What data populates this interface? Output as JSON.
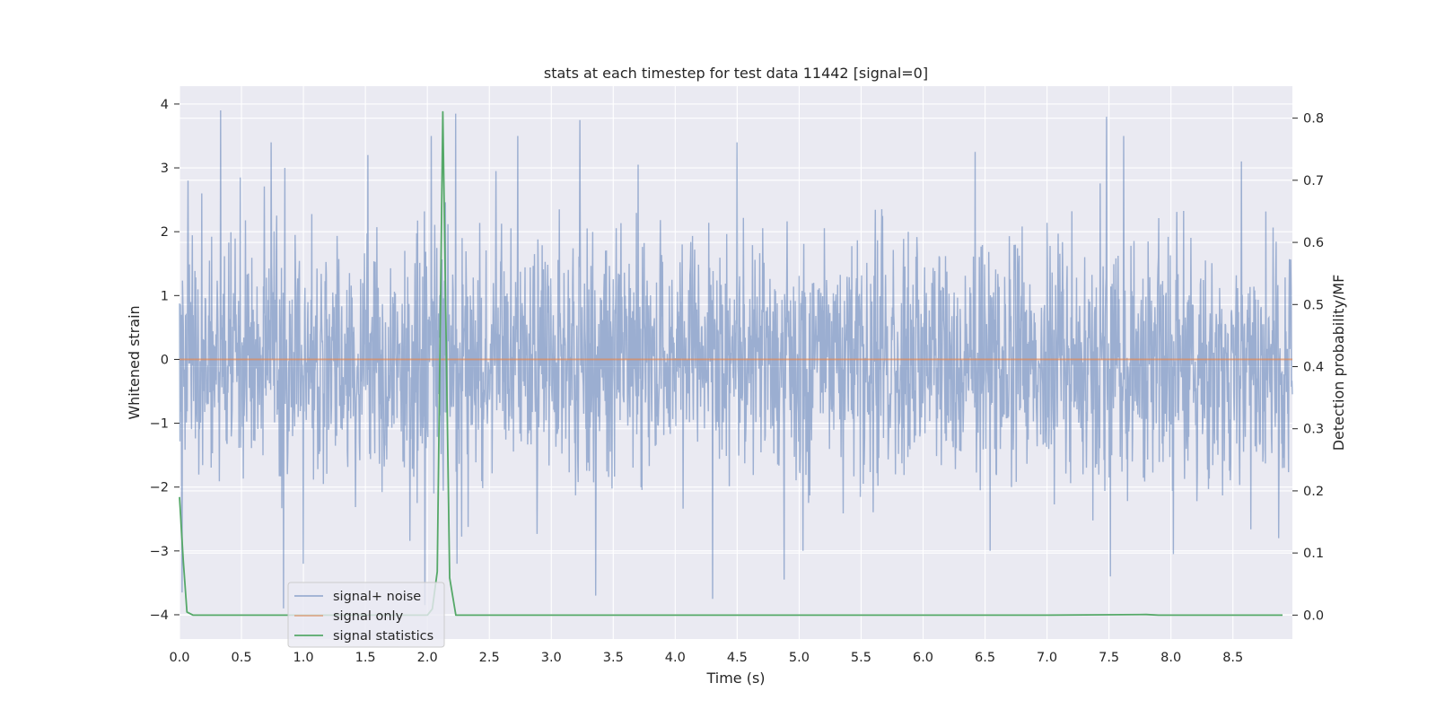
{
  "chart_data": {
    "type": "line",
    "title": "stats at each timestep for test data 11442 [signal=0]",
    "xlabel": "Time (s)",
    "ylabel": "Whitened strain",
    "y2label": "Detection probability/MF",
    "xlim": [
      0.0,
      8.98
    ],
    "ylim": [
      -4.38,
      4.28
    ],
    "y2lim": [
      -0.0385,
      0.8515
    ],
    "xticks": [
      "0.0",
      "0.5",
      "1.0",
      "1.5",
      "2.0",
      "2.5",
      "3.0",
      "3.5",
      "4.0",
      "4.5",
      "5.0",
      "5.5",
      "6.0",
      "6.5",
      "7.0",
      "7.5",
      "8.0",
      "8.5"
    ],
    "yticks": [
      "4",
      "3",
      "2",
      "1",
      "0",
      "−1",
      "−2",
      "−3",
      "−4"
    ],
    "y2ticks": [
      "0.8",
      "0.7",
      "0.6",
      "0.5",
      "0.4",
      "0.3",
      "0.2",
      "0.1",
      "0.0"
    ],
    "grid": true,
    "legend_position": "lower left",
    "colors": {
      "noise": "#4c72b0",
      "signal": "#dd8452",
      "stats": "#55a868",
      "background": "#eaeaf2",
      "grid": "#ffffff"
    },
    "series": [
      {
        "name": "signal+ noise",
        "axis": "left",
        "style": "dense gaussian noise, sd ≈ 1",
        "peaks": [
          [
            0.07,
            2.8
          ],
          [
            0.18,
            2.6
          ],
          [
            0.33,
            3.9
          ],
          [
            0.49,
            2.85
          ],
          [
            0.74,
            3.4
          ],
          [
            0.85,
            3.0
          ],
          [
            1.52,
            3.2
          ],
          [
            2.03,
            3.5
          ],
          [
            2.23,
            3.85
          ],
          [
            2.73,
            3.5
          ],
          [
            3.23,
            3.75
          ],
          [
            3.7,
            3.05
          ],
          [
            4.5,
            3.4
          ],
          [
            6.42,
            3.25
          ],
          [
            7.48,
            3.8
          ],
          [
            7.62,
            3.5
          ],
          [
            8.57,
            3.1
          ],
          [
            0.02,
            -3.65
          ],
          [
            0.84,
            -3.9
          ],
          [
            1.0,
            -3.2
          ],
          [
            1.98,
            -3.85
          ],
          [
            2.24,
            -3.2
          ],
          [
            3.36,
            -3.7
          ],
          [
            4.3,
            -3.75
          ],
          [
            4.88,
            -3.45
          ],
          [
            5.03,
            -3.0
          ],
          [
            6.54,
            -3.0
          ],
          [
            7.51,
            -3.4
          ],
          [
            8.02,
            -3.05
          ],
          [
            8.87,
            -2.8
          ]
        ]
      },
      {
        "name": "signal only",
        "axis": "left",
        "x": [
          0.0,
          8.98
        ],
        "y": [
          0.0,
          0.0
        ]
      },
      {
        "name": "signal statistics",
        "axis": "right",
        "x": [
          0.0,
          0.03,
          0.06,
          0.11,
          0.25,
          0.5,
          1.0,
          1.5,
          2.0,
          2.04,
          2.08,
          2.125,
          2.18,
          2.23,
          2.3,
          3.0,
          4.0,
          5.0,
          6.0,
          7.0,
          7.8,
          7.9,
          8.0,
          8.9
        ],
        "y": [
          0.19,
          0.09,
          0.005,
          0.0,
          0.0,
          0.0,
          0.0,
          0.0,
          0.0,
          0.01,
          0.07,
          0.81,
          0.06,
          0.0,
          0.0,
          0.0,
          0.0,
          0.0,
          0.0,
          0.0,
          0.001,
          0.0,
          0.0,
          0.0
        ]
      }
    ]
  }
}
